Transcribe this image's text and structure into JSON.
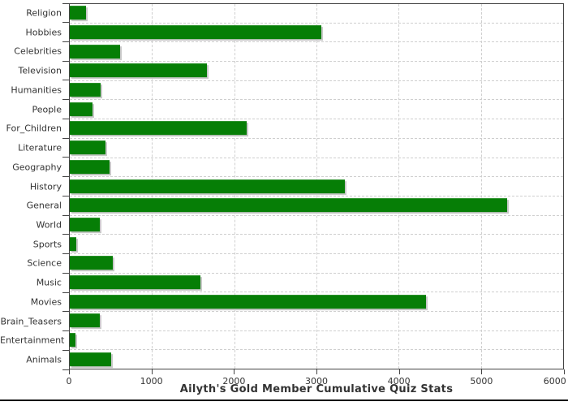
{
  "chart_data": {
    "type": "bar",
    "orientation": "horizontal",
    "title": "Ailyth's Gold Member Cumulative Quiz Stats",
    "categories": [
      "Religion",
      "Hobbies",
      "Celebrities",
      "Television",
      "Humanities",
      "People",
      "For_Children",
      "Literature",
      "Geography",
      "History",
      "General",
      "World",
      "Sports",
      "Science",
      "Music",
      "Movies",
      "Brain_Teasers",
      "Entertainment",
      "Animals"
    ],
    "values": [
      200,
      3055,
      615,
      1665,
      375,
      275,
      2155,
      435,
      485,
      3345,
      5315,
      365,
      80,
      525,
      1585,
      4335,
      365,
      70,
      505
    ],
    "xlabel": "",
    "ylabel": "",
    "xlim": [
      0,
      6000
    ],
    "x_ticks": [
      0,
      1000,
      2000,
      3000,
      4000,
      5000,
      6000
    ],
    "grid": "dashed-both-axes",
    "legend_position": "none",
    "colors": {
      "bar": "#067e06",
      "bar_shadow": "#c9c9c9",
      "gridline": "#cfcfcf",
      "axis": "#444444",
      "text": "#333333",
      "background": "#ffffff",
      "bottom_rule": "#0b0b0b"
    }
  }
}
